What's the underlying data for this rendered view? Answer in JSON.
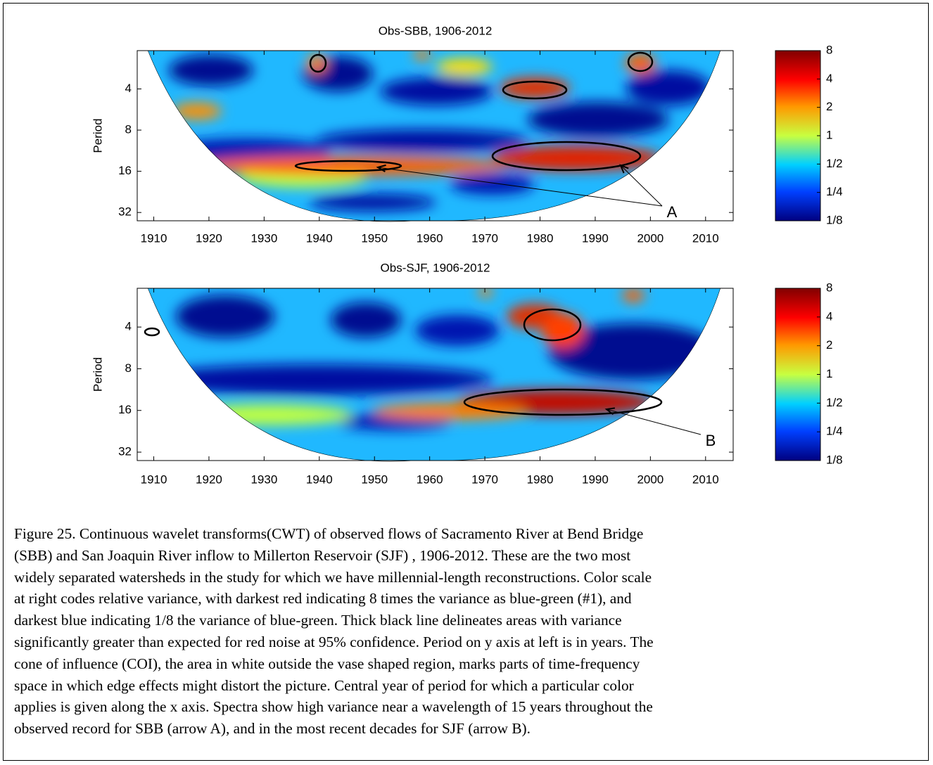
{
  "chart_data": [
    {
      "type": "heatmap",
      "title": "Obs-SBB, 1906-2012",
      "ylabel": "Period",
      "xlim": [
        1907,
        2015
      ],
      "xticks": [
        1910,
        1920,
        1930,
        1940,
        1950,
        1960,
        1970,
        1980,
        1990,
        2000,
        2010
      ],
      "ylim": [
        2.1,
        36.8
      ],
      "ylog": true,
      "yreverse": true,
      "yticks": [
        4,
        8,
        16,
        32
      ],
      "colorbar": {
        "lim": [
          0.125,
          8
        ],
        "log": true,
        "ticks": [
          8,
          4,
          2,
          1,
          {
            "value": 0.5,
            "label": "1/2"
          },
          {
            "value": 0.25,
            "label": "1/4"
          },
          {
            "value": 0.125,
            "label": "1/8"
          }
        ]
      },
      "annotations": [
        "A"
      ]
    },
    {
      "type": "heatmap",
      "title": "Obs-SJF, 1906-2012",
      "ylabel": "Period",
      "xlim": [
        1907,
        2015
      ],
      "xticks": [
        1910,
        1920,
        1930,
        1940,
        1950,
        1960,
        1970,
        1980,
        1990,
        2000,
        2010
      ],
      "ylim": [
        2.1,
        36.8
      ],
      "ylog": true,
      "yreverse": true,
      "yticks": [
        4,
        8,
        16,
        32
      ],
      "colorbar": {
        "lim": [
          0.125,
          8
        ],
        "log": true,
        "ticks": [
          8,
          4,
          2,
          1,
          {
            "value": 0.5,
            "label": "1/2"
          },
          {
            "value": 0.25,
            "label": "1/4"
          },
          {
            "value": 0.125,
            "label": "1/8"
          }
        ]
      },
      "annotations": [
        "B"
      ]
    }
  ],
  "caption": [
    "Figure 25.  Continuous wavelet transforms(CWT) of observed flows of Sacramento River at Bend Bridge",
    "(SBB) and San Joaquin River inflow to Millerton Reservoir (SJF) , 1906-2012.  These are the two most",
    "widely separated watersheds in the study for which we have millennial-length reconstructions.  Color scale",
    "at right codes relative variance, with darkest red indicating 8 times the variance as blue-green (#1), and",
    "darkest blue indicating 1/8 the variance of blue-green.  Thick black line delineates areas with variance",
    "significantly greater than expected for red noise at 95% confidence.  Period on y axis at left is in years.  The",
    "cone of influence (COI), the area in white outside the vase shaped region, marks parts of time-frequency",
    "space in which edge effects might distort the picture. Central year of period for which a particular color",
    "applies is given along the x axis.  Spectra show high variance near a wavelength of 15 years throughout the",
    "observed record for SBB (arrow A), and in the most recent decades for SJF (arrow B)."
  ]
}
